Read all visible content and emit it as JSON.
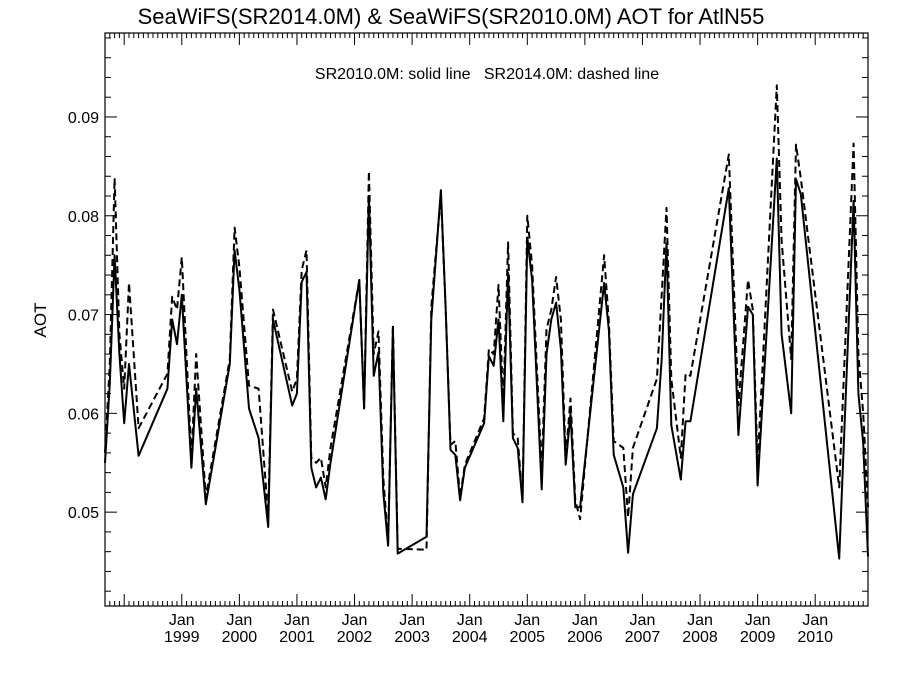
{
  "chart_data": {
    "type": "line",
    "title": "SeaWiFS(SR2014.0M) & SeaWiFS(SR2010.0M)  AOT for AtlN55",
    "annotation": "SR2010.0M: solid line   SR2014.0M: dashed line",
    "xlabel": "",
    "ylabel": "AOT",
    "xlim": [
      "1997-09",
      "2010-12"
    ],
    "ylim": [
      0.0405,
      0.0985
    ],
    "y_ticks": [
      0.05,
      0.06,
      0.07,
      0.08,
      0.09
    ],
    "y_tick_labels": [
      "0.05",
      "0.06",
      "0.07",
      "0.08",
      "0.09"
    ],
    "x_ticks": [
      {
        "date": "1999-01",
        "month": "Jan",
        "year": "1999"
      },
      {
        "date": "2000-01",
        "month": "Jan",
        "year": "2000"
      },
      {
        "date": "2001-01",
        "month": "Jan",
        "year": "2001"
      },
      {
        "date": "2002-01",
        "month": "Jan",
        "year": "2002"
      },
      {
        "date": "2003-01",
        "month": "Jan",
        "year": "2003"
      },
      {
        "date": "2004-01",
        "month": "Jan",
        "year": "2004"
      },
      {
        "date": "2005-01",
        "month": "Jan",
        "year": "2005"
      },
      {
        "date": "2006-01",
        "month": "Jan",
        "year": "2006"
      },
      {
        "date": "2007-01",
        "month": "Jan",
        "year": "2007"
      },
      {
        "date": "2008-01",
        "month": "Jan",
        "year": "2008"
      },
      {
        "date": "2009-01",
        "month": "Jan",
        "year": "2009"
      },
      {
        "date": "2010-01",
        "month": "Jan",
        "year": "2010"
      }
    ],
    "grid": false,
    "legend": "none",
    "series": [
      {
        "style": "solid",
        "color": "#000000",
        "points": [
          [
            "1997-09",
            0.055
          ],
          [
            "1997-10",
            0.063
          ],
          [
            "1997-11",
            0.076
          ],
          [
            "1997-12",
            0.066
          ],
          [
            "1998-01",
            0.059
          ],
          [
            "1998-02",
            0.065
          ],
          [
            "1998-04",
            0.0557
          ],
          [
            "1998-10",
            0.0625
          ],
          [
            "1998-11",
            0.0695
          ],
          [
            "1998-12",
            0.067
          ],
          [
            "1999-01",
            0.072
          ],
          [
            "1999-03",
            0.0545
          ],
          [
            "1999-04",
            0.0625
          ],
          [
            "1999-06",
            0.0508
          ],
          [
            "1999-11",
            0.065
          ],
          [
            "1999-12",
            0.0765
          ],
          [
            "2000-01",
            0.0725
          ],
          [
            "2000-03",
            0.0605
          ],
          [
            "2000-05",
            0.0575
          ],
          [
            "2000-07",
            0.0485
          ],
          [
            "2000-08",
            0.0695
          ],
          [
            "2000-12",
            0.0608
          ],
          [
            "2001-01",
            0.062
          ],
          [
            "2001-02",
            0.0733
          ],
          [
            "2001-03",
            0.0743
          ],
          [
            "2001-04",
            0.0545
          ],
          [
            "2001-05",
            0.0525
          ],
          [
            "2001-06",
            0.0535
          ],
          [
            "2001-07",
            0.0513
          ],
          [
            "2001-08",
            0.055
          ],
          [
            "2002-02",
            0.0735
          ],
          [
            "2002-03",
            0.0605
          ],
          [
            "2002-04",
            0.082
          ],
          [
            "2002-05",
            0.0638
          ],
          [
            "2002-06",
            0.0662
          ],
          [
            "2002-07",
            0.052
          ],
          [
            "2002-08",
            0.0466
          ],
          [
            "2002-09",
            0.0685
          ],
          [
            "2002-10",
            0.0458
          ],
          [
            "2003-04",
            0.0475
          ],
          [
            "2003-05",
            0.0695
          ],
          [
            "2003-07",
            0.0826
          ],
          [
            "2003-08",
            0.0705
          ],
          [
            "2003-09",
            0.0563
          ],
          [
            "2003-10",
            0.0558
          ],
          [
            "2003-11",
            0.0512
          ],
          [
            "2003-12",
            0.0545
          ],
          [
            "2004-04",
            0.059
          ],
          [
            "2004-05",
            0.0658
          ],
          [
            "2004-06",
            0.0648
          ],
          [
            "2004-07",
            0.0695
          ],
          [
            "2004-08",
            0.0592
          ],
          [
            "2004-09",
            0.0742
          ],
          [
            "2004-10",
            0.0575
          ],
          [
            "2004-11",
            0.0565
          ],
          [
            "2004-12",
            0.051
          ],
          [
            "2005-01",
            0.0778
          ],
          [
            "2005-02",
            0.0735
          ],
          [
            "2005-04",
            0.0523
          ],
          [
            "2005-05",
            0.066
          ],
          [
            "2005-06",
            0.0695
          ],
          [
            "2005-07",
            0.0712
          ],
          [
            "2005-08",
            0.0665
          ],
          [
            "2005-09",
            0.0548
          ],
          [
            "2005-10",
            0.06
          ],
          [
            "2005-11",
            0.0505
          ],
          [
            "2005-12",
            0.0505
          ],
          [
            "2006-05",
            0.0732
          ],
          [
            "2006-06",
            0.0684
          ],
          [
            "2006-07",
            0.0558
          ],
          [
            "2006-09",
            0.0525
          ],
          [
            "2006-10",
            0.0459
          ],
          [
            "2006-11",
            0.0518
          ],
          [
            "2007-04",
            0.0585
          ],
          [
            "2007-05",
            0.0655
          ],
          [
            "2007-06",
            0.0772
          ],
          [
            "2007-07",
            0.0588
          ],
          [
            "2007-09",
            0.0533
          ],
          [
            "2007-10",
            0.0592
          ],
          [
            "2007-11",
            0.0592
          ],
          [
            "2008-07",
            0.0828
          ],
          [
            "2008-09",
            0.0578
          ],
          [
            "2008-11",
            0.0708
          ],
          [
            "2008-12",
            0.07
          ],
          [
            "2009-01",
            0.0527
          ],
          [
            "2009-05",
            0.0858
          ],
          [
            "2009-06",
            0.068
          ],
          [
            "2009-08",
            0.06
          ],
          [
            "2009-09",
            0.0837
          ],
          [
            "2009-10",
            0.0822
          ],
          [
            "2010-06",
            0.0453
          ],
          [
            "2010-09",
            0.0815
          ],
          [
            "2010-10",
            0.062
          ],
          [
            "2010-11",
            0.057
          ],
          [
            "2010-12",
            0.0455
          ]
        ]
      },
      {
        "style": "dashed",
        "color": "#000000",
        "points": [
          [
            "1997-09",
            0.056
          ],
          [
            "1997-10",
            0.065
          ],
          [
            "1997-11",
            0.0838
          ],
          [
            "1997-12",
            0.068
          ],
          [
            "1998-01",
            0.0625
          ],
          [
            "1998-02",
            0.0732
          ],
          [
            "1998-04",
            0.0585
          ],
          [
            "1998-10",
            0.064
          ],
          [
            "1998-11",
            0.0718
          ],
          [
            "1998-12",
            0.0705
          ],
          [
            "1999-01",
            0.0758
          ],
          [
            "1999-03",
            0.0555
          ],
          [
            "1999-04",
            0.066
          ],
          [
            "1999-06",
            0.0515
          ],
          [
            "1999-11",
            0.0655
          ],
          [
            "1999-12",
            0.0788
          ],
          [
            "2000-01",
            0.0748
          ],
          [
            "2000-03",
            0.0628
          ],
          [
            "2000-05",
            0.0625
          ],
          [
            "2000-07",
            0.0495
          ],
          [
            "2000-08",
            0.0705
          ],
          [
            "2000-12",
            0.0622
          ],
          [
            "2001-01",
            0.0635
          ],
          [
            "2001-02",
            0.0745
          ],
          [
            "2001-03",
            0.0765
          ],
          [
            "2001-04",
            0.0555
          ],
          [
            "2001-05",
            0.055
          ],
          [
            "2001-06",
            0.0555
          ],
          [
            "2001-07",
            0.0525
          ],
          [
            "2001-08",
            0.0565
          ],
          [
            "2002-02",
            0.0735
          ],
          [
            "2002-03",
            0.0605
          ],
          [
            "2002-04",
            0.0845
          ],
          [
            "2002-05",
            0.066
          ],
          [
            "2002-06",
            0.0683
          ],
          [
            "2002-07",
            0.0535
          ],
          [
            "2002-08",
            0.0468
          ],
          [
            "2002-09",
            0.069
          ],
          [
            "2002-10",
            0.0463
          ],
          [
            "2003-04",
            0.0462
          ],
          [
            "2003-05",
            0.0708
          ],
          [
            "2003-07",
            0.0822
          ],
          [
            "2003-08",
            0.0705
          ],
          [
            "2003-09",
            0.0568
          ],
          [
            "2003-10",
            0.0572
          ],
          [
            "2003-11",
            0.0515
          ],
          [
            "2003-12",
            0.0548
          ],
          [
            "2004-04",
            0.0595
          ],
          [
            "2004-05",
            0.0665
          ],
          [
            "2004-06",
            0.066
          ],
          [
            "2004-07",
            0.073
          ],
          [
            "2004-08",
            0.061
          ],
          [
            "2004-09",
            0.0773
          ],
          [
            "2004-10",
            0.058
          ],
          [
            "2004-11",
            0.0575
          ],
          [
            "2004-12",
            0.0512
          ],
          [
            "2005-01",
            0.08
          ],
          [
            "2005-02",
            0.075
          ],
          [
            "2005-04",
            0.0542
          ],
          [
            "2005-05",
            0.0685
          ],
          [
            "2005-06",
            0.0705
          ],
          [
            "2005-07",
            0.0738
          ],
          [
            "2005-08",
            0.0695
          ],
          [
            "2005-09",
            0.0555
          ],
          [
            "2005-10",
            0.0615
          ],
          [
            "2005-11",
            0.0512
          ],
          [
            "2005-12",
            0.0493
          ],
          [
            "2006-05",
            0.076
          ],
          [
            "2006-06",
            0.0692
          ],
          [
            "2006-07",
            0.0572
          ],
          [
            "2006-09",
            0.0565
          ],
          [
            "2006-10",
            0.0495
          ],
          [
            "2006-11",
            0.0565
          ],
          [
            "2007-04",
            0.0635
          ],
          [
            "2007-05",
            0.072
          ],
          [
            "2007-06",
            0.0808
          ],
          [
            "2007-07",
            0.0635
          ],
          [
            "2007-09",
            0.0555
          ],
          [
            "2007-10",
            0.064
          ],
          [
            "2007-11",
            0.0638
          ],
          [
            "2008-07",
            0.0862
          ],
          [
            "2008-09",
            0.0608
          ],
          [
            "2008-11",
            0.0735
          ],
          [
            "2008-12",
            0.0705
          ],
          [
            "2009-01",
            0.0548
          ],
          [
            "2009-05",
            0.0932
          ],
          [
            "2009-06",
            0.0775
          ],
          [
            "2009-08",
            0.0655
          ],
          [
            "2009-09",
            0.0872
          ],
          [
            "2009-10",
            0.0838
          ],
          [
            "2010-06",
            0.0525
          ],
          [
            "2010-09",
            0.0873
          ],
          [
            "2010-10",
            0.066
          ],
          [
            "2010-11",
            0.06
          ],
          [
            "2010-12",
            0.0505
          ]
        ]
      }
    ]
  }
}
